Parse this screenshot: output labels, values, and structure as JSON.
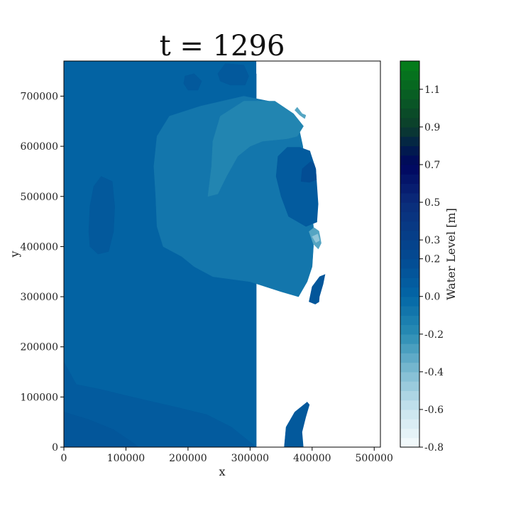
{
  "chart_data": {
    "type": "heatmap",
    "title": "t = 1296",
    "xlabel": "x",
    "ylabel": "y",
    "xlim": [
      0,
      510000
    ],
    "ylim": [
      0,
      770000
    ],
    "xticks": [
      {
        "value": 0,
        "label": "0"
      },
      {
        "value": 100000,
        "label": "100000"
      },
      {
        "value": 200000,
        "label": "200000"
      },
      {
        "value": 300000,
        "label": "300000"
      },
      {
        "value": 400000,
        "label": "400000"
      },
      {
        "value": 500000,
        "label": "500000"
      }
    ],
    "yticks": [
      {
        "value": 0,
        "label": "0"
      },
      {
        "value": 100000,
        "label": "100000"
      },
      {
        "value": 200000,
        "label": "200000"
      },
      {
        "value": 300000,
        "label": "300000"
      },
      {
        "value": 400000,
        "label": "400000"
      },
      {
        "value": 500000,
        "label": "500000"
      },
      {
        "value": 600000,
        "label": "600000"
      },
      {
        "value": 700000,
        "label": "700000"
      }
    ],
    "colorbar": {
      "label": "Water Level [m]",
      "range": [
        -0.8,
        1.25
      ],
      "ticks": [
        {
          "value": -0.8,
          "label": "-0.8"
        },
        {
          "value": -0.6,
          "label": "-0.6"
        },
        {
          "value": -0.4,
          "label": "-0.4"
        },
        {
          "value": -0.2,
          "label": "-0.2"
        },
        {
          "value": 0.0,
          "label": "0.0"
        },
        {
          "value": 0.2,
          "label": "0.2"
        },
        {
          "value": 0.3,
          "label": "0.3"
        },
        {
          "value": 0.5,
          "label": "0.5"
        },
        {
          "value": 0.7,
          "label": "0.7"
        },
        {
          "value": 0.9,
          "label": "0.9"
        },
        {
          "value": 1.1,
          "label": "1.1"
        }
      ],
      "stops": [
        {
          "value": -0.8,
          "color": "#f7fcfd"
        },
        {
          "value": -0.6,
          "color": "#c8e4ee"
        },
        {
          "value": -0.4,
          "color": "#7fbcd2"
        },
        {
          "value": -0.2,
          "color": "#2a8db4"
        },
        {
          "value": 0.0,
          "color": "#0367a6"
        },
        {
          "value": 0.2,
          "color": "#034a92"
        },
        {
          "value": 0.5,
          "color": "#0b2c7a"
        },
        {
          "value": 0.7,
          "color": "#00055e"
        },
        {
          "value": 0.8,
          "color": "#02204a"
        },
        {
          "value": 0.9,
          "color": "#0b3d2c"
        },
        {
          "value": 1.25,
          "color": "#04801a"
        }
      ]
    },
    "domain_polygon": [
      [
        0,
        0
      ],
      [
        0,
        770000
      ],
      [
        310000,
        770000
      ],
      [
        310000,
        745000
      ],
      [
        330000,
        730000
      ],
      [
        355000,
        715000
      ],
      [
        368000,
        695000
      ],
      [
        378000,
        675000
      ],
      [
        390000,
        662000
      ],
      [
        388000,
        640000
      ],
      [
        392000,
        610000
      ],
      [
        398000,
        585000
      ],
      [
        406000,
        555000
      ],
      [
        408000,
        520000
      ],
      [
        410000,
        485000
      ],
      [
        408000,
        450000
      ],
      [
        413000,
        420000
      ],
      [
        418000,
        385000
      ],
      [
        422000,
        350000
      ],
      [
        418000,
        325000
      ],
      [
        412000,
        300000
      ],
      [
        410000,
        270000
      ],
      [
        406000,
        245000
      ],
      [
        402000,
        220000
      ],
      [
        398000,
        195000
      ],
      [
        394000,
        175000
      ],
      [
        392000,
        148000
      ],
      [
        380000,
        145000
      ],
      [
        375000,
        130000
      ],
      [
        374000,
        105000
      ],
      [
        390000,
        95000
      ],
      [
        396000,
        85000
      ],
      [
        390000,
        60000
      ],
      [
        384000,
        30000
      ],
      [
        386000,
        0
      ]
    ],
    "level_regions": [
      {
        "level": 0.03,
        "polygon": [
          [
            0,
            0
          ],
          [
            0,
            770000
          ],
          [
            310000,
            770000
          ],
          [
            310000,
            0
          ]
        ]
      },
      {
        "level": -0.08,
        "polygon": [
          [
            150000,
            620000
          ],
          [
            170000,
            660000
          ],
          [
            220000,
            680000
          ],
          [
            290000,
            700000
          ],
          [
            330000,
            690000
          ],
          [
            360000,
            670000
          ],
          [
            378000,
            640000
          ],
          [
            385000,
            600000
          ],
          [
            388000,
            560000
          ],
          [
            392000,
            520000
          ],
          [
            398000,
            480000
          ],
          [
            402000,
            440000
          ],
          [
            402000,
            400000
          ],
          [
            400000,
            360000
          ],
          [
            392000,
            330000
          ],
          [
            378000,
            300000
          ],
          [
            350000,
            310000
          ],
          [
            300000,
            330000
          ],
          [
            240000,
            340000
          ],
          [
            210000,
            360000
          ],
          [
            190000,
            380000
          ],
          [
            160000,
            400000
          ],
          [
            150000,
            440000
          ],
          [
            148000,
            500000
          ],
          [
            145000,
            560000
          ]
        ]
      },
      {
        "level": -0.16,
        "polygon": [
          [
            232000,
            500000
          ],
          [
            238000,
            560000
          ],
          [
            240000,
            610000
          ],
          [
            252000,
            660000
          ],
          [
            290000,
            690000
          ],
          [
            340000,
            690000
          ],
          [
            370000,
            665000
          ],
          [
            386000,
            640000
          ],
          [
            376000,
            620000
          ],
          [
            360000,
            615000
          ],
          [
            320000,
            610000
          ],
          [
            300000,
            600000
          ],
          [
            280000,
            580000
          ],
          [
            262000,
            540000
          ],
          [
            248000,
            505000
          ]
        ]
      },
      {
        "level": 0.08,
        "polygon": [
          [
            345000,
            580000
          ],
          [
            342000,
            540000
          ],
          [
            350000,
            500000
          ],
          [
            362000,
            460000
          ],
          [
            390000,
            440000
          ],
          [
            410000,
            450000
          ],
          [
            412000,
            490000
          ],
          [
            410000,
            530000
          ],
          [
            408000,
            560000
          ],
          [
            398000,
            590000
          ],
          [
            380000,
            598000
          ],
          [
            360000,
            598000
          ]
        ]
      },
      {
        "level": 0.18,
        "polygon": [
          [
            382000,
            530000
          ],
          [
            384000,
            555000
          ],
          [
            398000,
            570000
          ],
          [
            408000,
            560000
          ],
          [
            410000,
            535000
          ],
          [
            396000,
            528000
          ]
        ]
      },
      {
        "level": 0.1,
        "polygon": [
          [
            40000,
            430000
          ],
          [
            42000,
            480000
          ],
          [
            48000,
            520000
          ],
          [
            60000,
            540000
          ],
          [
            78000,
            530000
          ],
          [
            82000,
            480000
          ],
          [
            80000,
            430000
          ],
          [
            72000,
            390000
          ],
          [
            55000,
            385000
          ],
          [
            42000,
            400000
          ]
        ]
      },
      {
        "level": 0.1,
        "polygon": [
          [
            195000,
            740000
          ],
          [
            210000,
            745000
          ],
          [
            222000,
            730000
          ],
          [
            216000,
            712000
          ],
          [
            200000,
            712000
          ],
          [
            193000,
            725000
          ]
        ]
      },
      {
        "level": 0.1,
        "polygon": [
          [
            248000,
            745000
          ],
          [
            260000,
            765000
          ],
          [
            290000,
            762000
          ],
          [
            298000,
            740000
          ],
          [
            292000,
            722000
          ],
          [
            268000,
            722000
          ],
          [
            252000,
            730000
          ]
        ]
      },
      {
        "level": 0.08,
        "polygon": [
          [
            0,
            0
          ],
          [
            0,
            170000
          ],
          [
            20000,
            125000
          ],
          [
            60000,
            115000
          ],
          [
            110000,
            100000
          ],
          [
            180000,
            80000
          ],
          [
            230000,
            65000
          ],
          [
            270000,
            40000
          ],
          [
            300000,
            10000
          ],
          [
            310000,
            0
          ]
        ]
      },
      {
        "level": 0.12,
        "polygon": [
          [
            0,
            0
          ],
          [
            0,
            70000
          ],
          [
            40000,
            55000
          ],
          [
            80000,
            35000
          ],
          [
            110000,
            10000
          ],
          [
            120000,
            0
          ]
        ]
      },
      {
        "level": 0.1,
        "polygon": [
          [
            355000,
            0
          ],
          [
            358000,
            40000
          ],
          [
            372000,
            70000
          ],
          [
            392000,
            90000
          ],
          [
            402000,
            75000
          ],
          [
            396000,
            40000
          ],
          [
            392000,
            0
          ]
        ]
      },
      {
        "level": 0.12,
        "polygon": [
          [
            395000,
            290000
          ],
          [
            400000,
            320000
          ],
          [
            412000,
            340000
          ],
          [
            422000,
            345000
          ],
          [
            424000,
            320000
          ],
          [
            418000,
            295000
          ],
          [
            405000,
            285000
          ]
        ]
      },
      {
        "level": -0.3,
        "polygon": [
          [
            395000,
            430000
          ],
          [
            402000,
            405000
          ],
          [
            410000,
            395000
          ],
          [
            416000,
            410000
          ],
          [
            412000,
            430000
          ],
          [
            403000,
            438000
          ]
        ]
      },
      {
        "level": -0.45,
        "polygon": [
          [
            400000,
            420000
          ],
          [
            406000,
            408000
          ],
          [
            412000,
            412000
          ],
          [
            409000,
            425000
          ]
        ]
      },
      {
        "level": -0.3,
        "polygon": [
          [
            376000,
            678000
          ],
          [
            384000,
            665000
          ],
          [
            390000,
            662000
          ],
          [
            388000,
            655000
          ],
          [
            380000,
            662000
          ],
          [
            372000,
            672000
          ]
        ]
      }
    ]
  }
}
